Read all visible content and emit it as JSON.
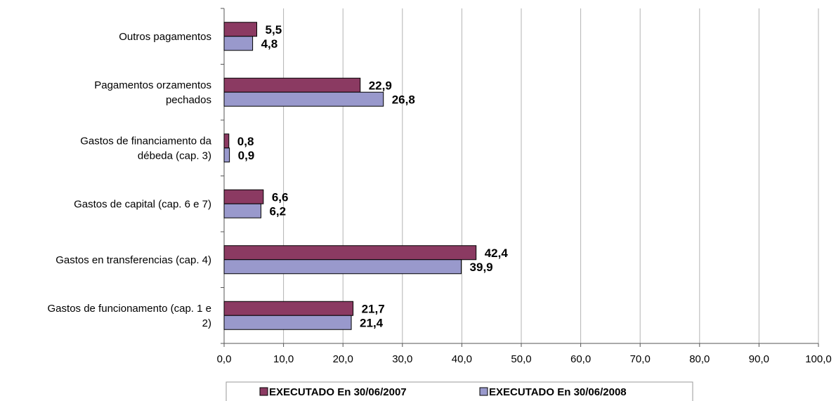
{
  "chart_data": {
    "type": "bar",
    "orientation": "horizontal",
    "categories": [
      "Outros pagamentos",
      "Pagamentos orzamentos pechados",
      "Gastos de financiamento da débeda (cap. 3)",
      "Gastos de capital (cap. 6 e 7)",
      "Gastos en transferencias (cap. 4)",
      "Gastos de funcionamento (cap. 1 e 2)"
    ],
    "category_lines": [
      [
        "Outros pagamentos"
      ],
      [
        "Pagamentos orzamentos",
        "pechados"
      ],
      [
        "Gastos de financiamento da",
        "débeda (cap. 3)"
      ],
      [
        "Gastos de capital (cap. 6 e 7)"
      ],
      [
        "Gastos en transferencias (cap. 4)"
      ],
      [
        "Gastos de funcionamento (cap. 1 e",
        "2)"
      ]
    ],
    "series": [
      {
        "name": "EXECUTADO En 30/06/2007",
        "color": "#8B3A62",
        "values": [
          5.5,
          22.9,
          0.8,
          6.6,
          42.4,
          21.7
        ],
        "labels": [
          "5,5",
          "22,9",
          "0,8",
          "6,6",
          "42,4",
          "21,7"
        ]
      },
      {
        "name": "EXECUTADO En 30/06/2008",
        "color": "#9999CC",
        "values": [
          4.8,
          26.8,
          0.9,
          6.2,
          39.9,
          21.4
        ],
        "labels": [
          "4,8",
          "26,8",
          "0,9",
          "6,2",
          "39,9",
          "21,4"
        ]
      }
    ],
    "xlim": [
      0,
      100
    ],
    "xticks": [
      0,
      10,
      20,
      30,
      40,
      50,
      60,
      70,
      80,
      90,
      100
    ],
    "xtick_labels": [
      "0,0",
      "10,0",
      "20,0",
      "30,0",
      "40,0",
      "50,0",
      "60,0",
      "70,0",
      "80,0",
      "90,0",
      "100,0"
    ],
    "grid": "vertical",
    "legend_position": "bottom",
    "title": "",
    "xlabel": "",
    "ylabel": ""
  }
}
